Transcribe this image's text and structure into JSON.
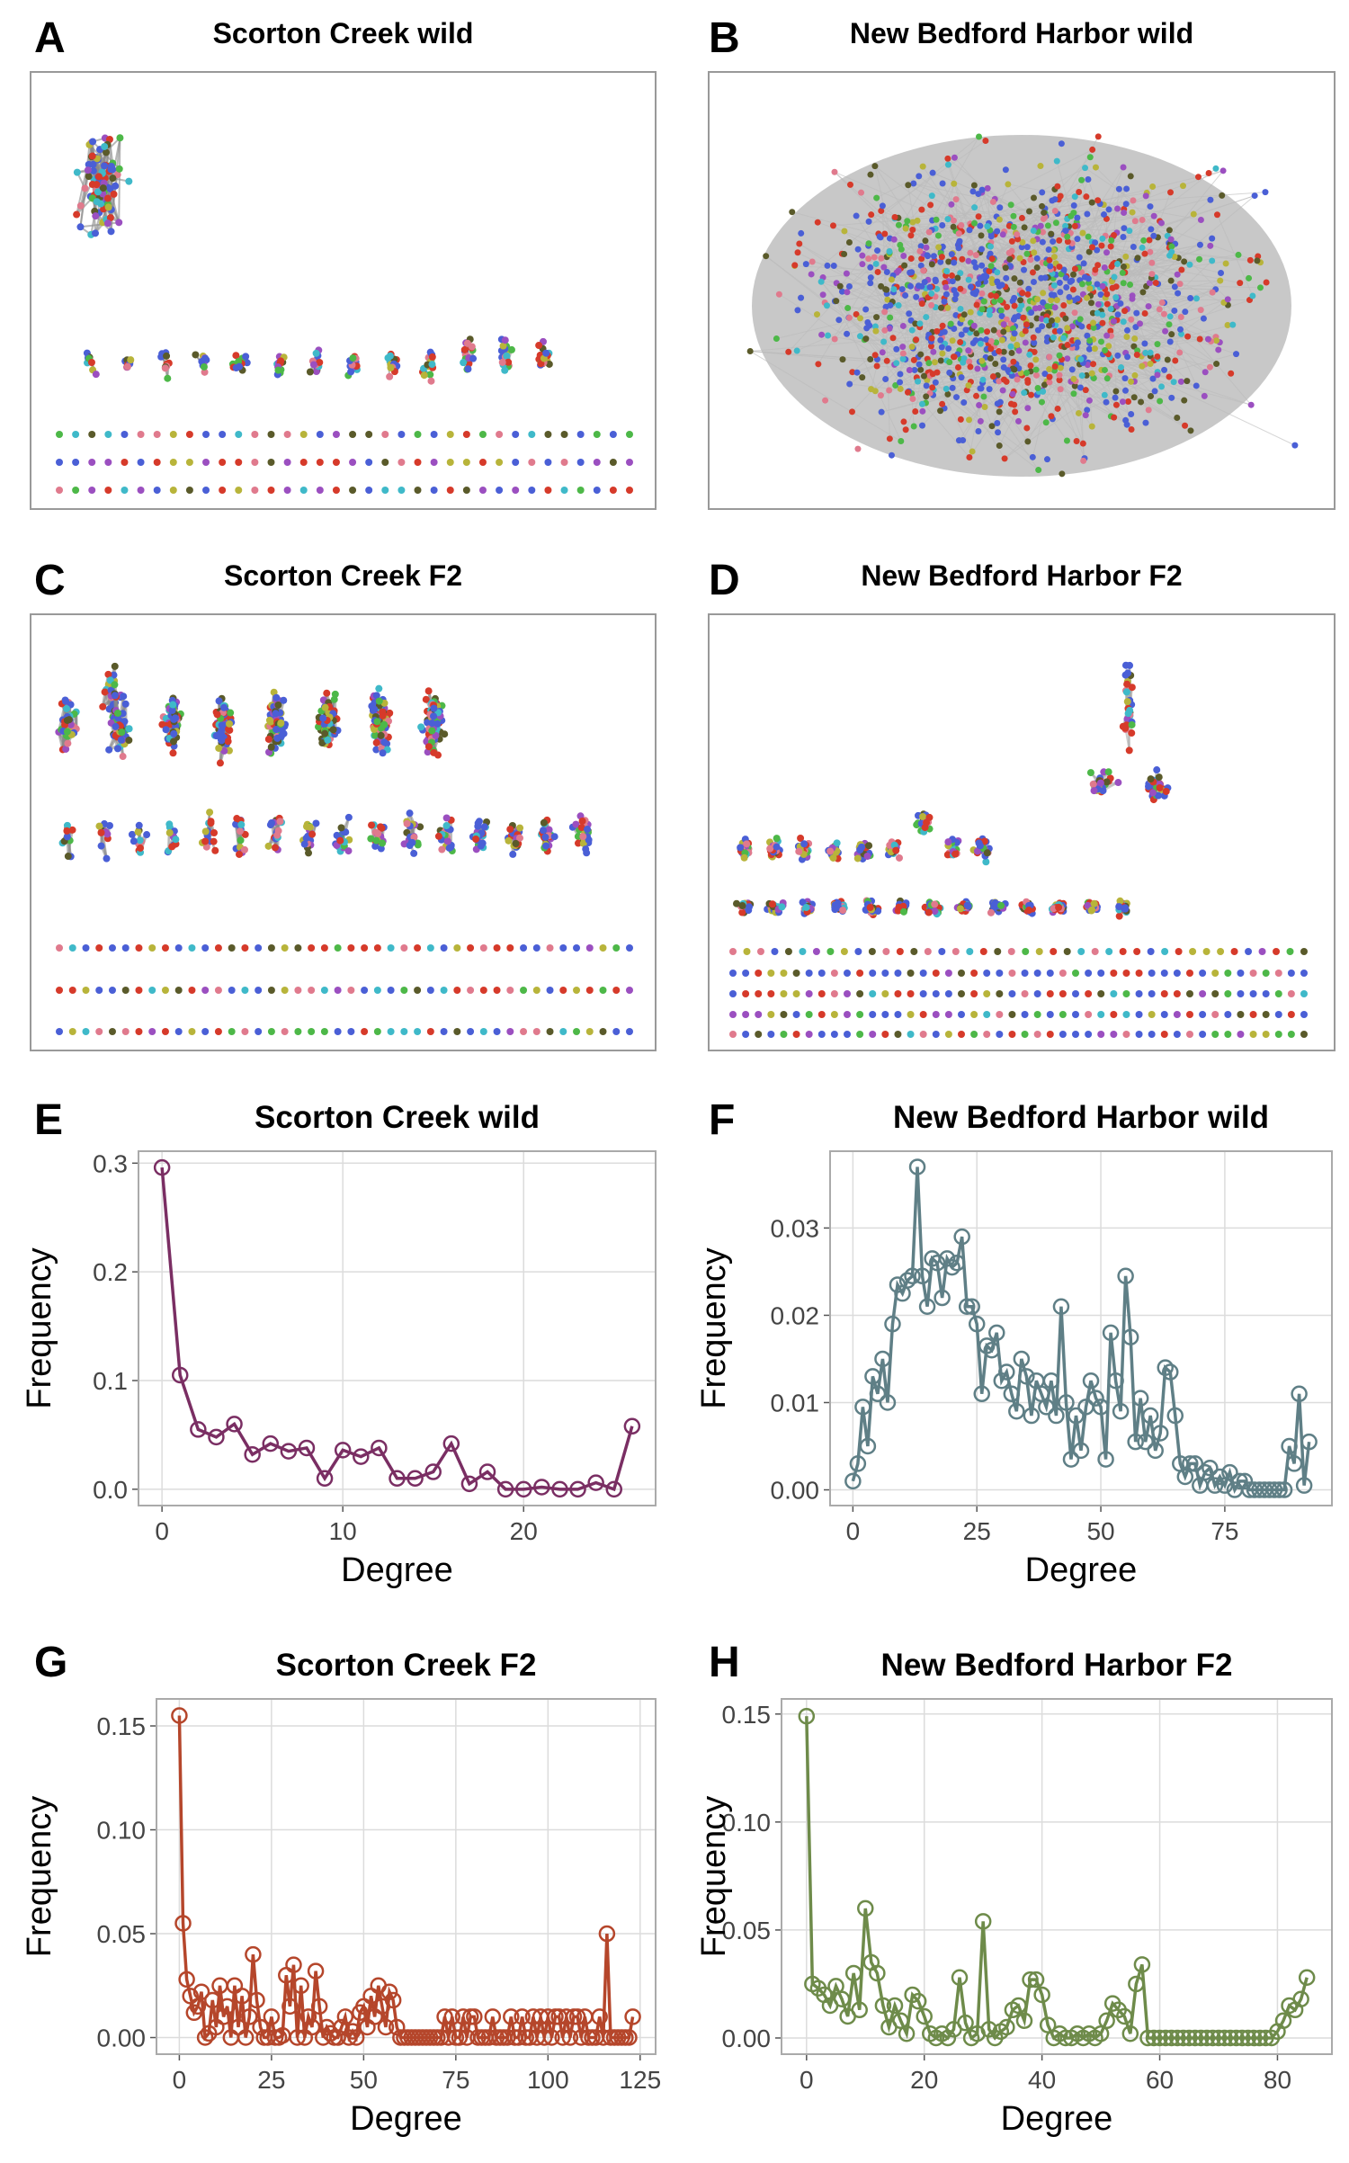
{
  "chart_data": [
    {
      "type": "network",
      "panel_label": "A",
      "title": "Scorton Creek wild"
    },
    {
      "type": "network",
      "panel_label": "B",
      "title": "New Bedford Harbor wild"
    },
    {
      "type": "network",
      "panel_label": "C",
      "title": "Scorton Creek F2"
    },
    {
      "type": "network",
      "panel_label": "D",
      "title": "New Bedford Harbor F2"
    },
    {
      "type": "line",
      "panel_label": "E",
      "title": "Scorton Creek wild",
      "x_label": "Degree",
      "y_label": "Frequency",
      "color": "#7a2e63",
      "grid": true,
      "x": [
        0,
        1,
        2,
        3,
        4,
        5,
        6,
        7,
        8,
        9,
        10,
        11,
        12,
        13,
        14,
        15,
        16,
        17,
        18,
        19,
        20,
        21,
        22,
        23,
        24,
        25,
        26
      ],
      "values": [
        0.296,
        0.105,
        0.055,
        0.048,
        0.06,
        0.032,
        0.042,
        0.035,
        0.038,
        0.01,
        0.036,
        0.03,
        0.038,
        0.01,
        0.01,
        0.016,
        0.042,
        0.005,
        0.016,
        0,
        0,
        0.002,
        0,
        0,
        0.006,
        0,
        0.058
      ],
      "xlim": [
        -1.3,
        27.3
      ],
      "xticks": [
        0,
        10,
        20
      ],
      "ylim": [
        -0.015,
        0.311
      ],
      "yticks": [
        {
          "value": 0,
          "label": "0.0"
        },
        0.1,
        0.2,
        0.3
      ]
    },
    {
      "type": "line",
      "panel_label": "F",
      "title": "New Bedford Harbor wild",
      "x_label": "Degree",
      "y_label": "Frequency",
      "color": "#5f7f86",
      "grid": true,
      "x": [
        0,
        1,
        2,
        3,
        4,
        5,
        6,
        7,
        8,
        9,
        10,
        11,
        12,
        13,
        14,
        15,
        16,
        17,
        18,
        19,
        20,
        21,
        22,
        23,
        24,
        25,
        26,
        27,
        28,
        29,
        30,
        31,
        32,
        33,
        34,
        35,
        36,
        37,
        38,
        39,
        40,
        41,
        42,
        43,
        44,
        45,
        46,
        47,
        48,
        49,
        50,
        51,
        52,
        53,
        54,
        55,
        56,
        57,
        58,
        59,
        60,
        61,
        62,
        63,
        64,
        65,
        66,
        67,
        68,
        69,
        70,
        71,
        72,
        73,
        74,
        75,
        76,
        77,
        78,
        79,
        80,
        81,
        82,
        83,
        84,
        85,
        86,
        87,
        88,
        89,
        90,
        91,
        92
      ],
      "values": [
        0.001,
        0.003,
        0.0095,
        0.005,
        0.013,
        0.011,
        0.015,
        0.01,
        0.019,
        0.0235,
        0.0225,
        0.024,
        0.0245,
        0.037,
        0.0245,
        0.021,
        0.0265,
        0.026,
        0.022,
        0.0265,
        0.0255,
        0.026,
        0.029,
        0.021,
        0.021,
        0.019,
        0.011,
        0.0165,
        0.016,
        0.018,
        0.0125,
        0.0135,
        0.011,
        0.009,
        0.015,
        0.013,
        0.0085,
        0.0125,
        0.011,
        0.0095,
        0.0125,
        0.0085,
        0.021,
        0.01,
        0.0035,
        0.0085,
        0.0045,
        0.0095,
        0.0125,
        0.0105,
        0.0095,
        0.0035,
        0.018,
        0.0125,
        0.009,
        0.0245,
        0.0175,
        0.0055,
        0.0105,
        0.0055,
        0.0085,
        0.0045,
        0.0065,
        0.014,
        0.0135,
        0.0085,
        0.003,
        0.0015,
        0.003,
        0.003,
        0.0005,
        0.002,
        0.0025,
        0.0005,
        0.0015,
        0.0005,
        0.002,
        0,
        0.001,
        0.001,
        0,
        0,
        0,
        0,
        0,
        0,
        0,
        0,
        0.005,
        0.003,
        0.011,
        0.0005,
        0.0055
      ],
      "xlim": [
        -4.6,
        96.6
      ],
      "xticks": [
        0,
        25,
        50,
        75
      ],
      "ylim": [
        -0.0018,
        0.0388
      ],
      "yticks": [
        {
          "value": 0,
          "label": "0.00"
        },
        0.01,
        0.02,
        0.03
      ]
    },
    {
      "type": "line",
      "panel_label": "G",
      "title": "Scorton Creek F2",
      "x_label": "Degree",
      "y_label": "Frequency",
      "color": "#b5462b",
      "grid": true,
      "x": [
        0,
        1,
        2,
        3,
        4,
        5,
        6,
        7,
        8,
        9,
        10,
        11,
        12,
        13,
        14,
        15,
        16,
        17,
        18,
        19,
        20,
        21,
        22,
        23,
        24,
        25,
        26,
        27,
        28,
        29,
        30,
        31,
        32,
        33,
        34,
        35,
        36,
        37,
        38,
        39,
        40,
        41,
        42,
        43,
        44,
        45,
        46,
        47,
        48,
        49,
        50,
        51,
        52,
        53,
        54,
        55,
        56,
        57,
        58,
        59,
        60,
        61,
        62,
        63,
        64,
        65,
        66,
        67,
        68,
        69,
        70,
        71,
        72,
        73,
        74,
        75,
        76,
        77,
        78,
        79,
        80,
        81,
        82,
        83,
        84,
        85,
        86,
        87,
        88,
        89,
        90,
        91,
        92,
        93,
        94,
        95,
        96,
        97,
        98,
        99,
        100,
        101,
        102,
        103,
        104,
        105,
        106,
        107,
        108,
        109,
        110,
        111,
        112,
        113,
        114,
        115,
        116,
        117,
        118,
        119,
        120,
        121,
        122,
        123
      ],
      "values": [
        0.155,
        0.055,
        0.028,
        0.02,
        0.012,
        0.015,
        0.022,
        0,
        0.002,
        0.018,
        0.005,
        0.025,
        0.01,
        0.015,
        0,
        0.025,
        0.005,
        0.02,
        0,
        0.01,
        0.04,
        0.018,
        0.005,
        0,
        0,
        0.01,
        0,
        0,
        0.001,
        0.03,
        0.015,
        0.035,
        0,
        0.025,
        0,
        0.01,
        0.005,
        0.032,
        0.015,
        0,
        0.005,
        0.002,
        0,
        0,
        0.005,
        0.01,
        0,
        0.003,
        0,
        0.012,
        0.015,
        0.005,
        0.02,
        0.01,
        0.025,
        0.015,
        0.005,
        0.022,
        0.018,
        0.005,
        0,
        0,
        0,
        0,
        0,
        0,
        0,
        0,
        0,
        0,
        0,
        0,
        0.01,
        0,
        0.01,
        0,
        0,
        0.01,
        0,
        0.01,
        0.01,
        0,
        0,
        0,
        0,
        0.01,
        0,
        0,
        0,
        0,
        0.01,
        0,
        0,
        0.01,
        0,
        0,
        0.01,
        0,
        0.01,
        0,
        0.01,
        0,
        0.01,
        0.01,
        0,
        0.01,
        0,
        0.01,
        0.01,
        0,
        0.01,
        0,
        0,
        0,
        0.01,
        0,
        0.05,
        0,
        0,
        0,
        0,
        0,
        0,
        0.01
      ],
      "xlim": [
        -6.2,
        129.2
      ],
      "xticks": [
        0,
        25,
        50,
        75,
        100,
        125
      ],
      "ylim": [
        -0.008,
        0.163
      ],
      "yticks": [
        {
          "value": 0,
          "label": "0.00"
        },
        0.05,
        {
          "value": 0.1,
          "label": "0.10"
        },
        0.15
      ]
    },
    {
      "type": "line",
      "panel_label": "H",
      "title": "New Bedford Harbor F2",
      "x_label": "Degree",
      "y_label": "Frequency",
      "color": "#6e8b4a",
      "grid": true,
      "x": [
        0,
        1,
        2,
        3,
        4,
        5,
        6,
        7,
        8,
        9,
        10,
        11,
        12,
        13,
        14,
        15,
        16,
        17,
        18,
        19,
        20,
        21,
        22,
        23,
        24,
        25,
        26,
        27,
        28,
        29,
        30,
        31,
        32,
        33,
        34,
        35,
        36,
        37,
        38,
        39,
        40,
        41,
        42,
        43,
        44,
        45,
        46,
        47,
        48,
        49,
        50,
        51,
        52,
        53,
        54,
        55,
        56,
        57,
        58,
        59,
        60,
        61,
        62,
        63,
        64,
        65,
        66,
        67,
        68,
        69,
        70,
        71,
        72,
        73,
        74,
        75,
        76,
        77,
        78,
        79,
        80,
        81,
        82,
        83,
        84,
        85
      ],
      "values": [
        0.149,
        0.025,
        0.023,
        0.02,
        0.015,
        0.024,
        0.018,
        0.01,
        0.03,
        0.013,
        0.06,
        0.035,
        0.03,
        0.015,
        0.005,
        0.015,
        0.008,
        0.002,
        0.02,
        0.017,
        0.01,
        0.002,
        0,
        0.002,
        0,
        0.004,
        0.028,
        0.007,
        0,
        0.002,
        0.054,
        0.004,
        0,
        0.003,
        0.005,
        0.013,
        0.015,
        0.008,
        0.027,
        0.027,
        0.02,
        0.006,
        0,
        0.002,
        0,
        0,
        0.002,
        0,
        0.002,
        0,
        0.002,
        0.008,
        0.016,
        0.013,
        0.01,
        0.002,
        0.025,
        0.034,
        0,
        0,
        0,
        0,
        0,
        0,
        0,
        0,
        0,
        0,
        0,
        0,
        0,
        0,
        0,
        0,
        0,
        0,
        0,
        0,
        0,
        0,
        0.003,
        0.008,
        0.015,
        0.013,
        0.018,
        0.028
      ],
      "xlim": [
        -4.25,
        89.25
      ],
      "xticks": [
        0,
        20,
        40,
        60,
        80
      ],
      "ylim": [
        -0.0075,
        0.157
      ],
      "yticks": [
        {
          "value": 0,
          "label": "0.00"
        },
        0.05,
        {
          "value": 0.1,
          "label": "0.10"
        },
        0.15
      ]
    }
  ]
}
